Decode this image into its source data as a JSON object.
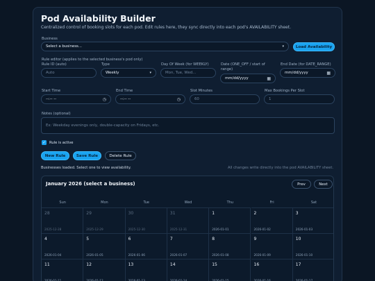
{
  "title": "Pod Availability Builder",
  "subtitle": "Centralized control of booking slots for each pod. Edit rules here, they sync directly into each pod's AVAILABILITY sheet.",
  "business": {
    "label": "Business",
    "value": "Select a business...",
    "load_label": "Load Availability"
  },
  "editor": {
    "heading": "Rule editor (applies to the selected business's pod only)",
    "rule_id_label": "Rule ID (auto)",
    "rule_id_placeholder": "Auto",
    "type_label": "Type",
    "type_value": "Weekly",
    "dow_label": "Day Of Week (for WEEKLY)",
    "dow_placeholder": "Mon, Tue, Wed...",
    "date_label": "Date (ONE_OFF / start of range)",
    "date_placeholder": "mm/dd/yyyy",
    "end_date_label": "End Date (for DATE_RANGE)",
    "end_date_placeholder": "mm/dd/yyyy",
    "start_time_label": "Start Time",
    "start_time_placeholder": "--:-- --",
    "end_time_label": "End Time",
    "end_time_placeholder": "--:-- --",
    "slot_minutes_label": "Slot Minutes",
    "slot_minutes_value": "60",
    "max_bookings_label": "Max Bookings Per Slot",
    "max_bookings_value": "1",
    "notes_label": "Notes (optional)",
    "notes_placeholder": "Ex: Weekday evenings only, double-capacity on Fridays, etc.",
    "active_label": "Rule is active"
  },
  "buttons": {
    "new_rule": "New Rule",
    "save_rule": "Save Rule",
    "delete_rule": "Delete Rule"
  },
  "status": {
    "left": "Businesses loaded. Select one to view availability.",
    "right": "All changes write directly into the pod AVAILABILITY sheet."
  },
  "calendar": {
    "title": "January 2026 (select a business)",
    "prev": "Prev",
    "next": "Next",
    "weekdays": [
      "Sun",
      "Mon",
      "Tue",
      "Wed",
      "Thu",
      "Fri",
      "Sat"
    ],
    "weeks": [
      [
        {
          "d": "28",
          "date": "2025-12-28",
          "out": true
        },
        {
          "d": "29",
          "date": "2025-12-29",
          "out": true
        },
        {
          "d": "30",
          "date": "2025-12-30",
          "out": true
        },
        {
          "d": "31",
          "date": "2025-12-31",
          "out": true
        },
        {
          "d": "1",
          "date": "2026-01-01"
        },
        {
          "d": "2",
          "date": "2026-01-02"
        },
        {
          "d": "3",
          "date": "2026-01-03"
        }
      ],
      [
        {
          "d": "4",
          "date": "2026-01-04"
        },
        {
          "d": "5",
          "date": "2026-01-05"
        },
        {
          "d": "6",
          "date": "2026-01-06"
        },
        {
          "d": "7",
          "date": "2026-01-07"
        },
        {
          "d": "8",
          "date": "2026-01-08"
        },
        {
          "d": "9",
          "date": "2026-01-09"
        },
        {
          "d": "10",
          "date": "2026-01-10"
        }
      ],
      [
        {
          "d": "11",
          "date": "2026-01-11"
        },
        {
          "d": "12",
          "date": "2026-01-12"
        },
        {
          "d": "13",
          "date": "2026-01-13"
        },
        {
          "d": "14",
          "date": "2026-01-14"
        },
        {
          "d": "15",
          "date": "2026-01-15"
        },
        {
          "d": "16",
          "date": "2026-01-16"
        },
        {
          "d": "17",
          "date": "2026-01-17"
        }
      ]
    ]
  }
}
